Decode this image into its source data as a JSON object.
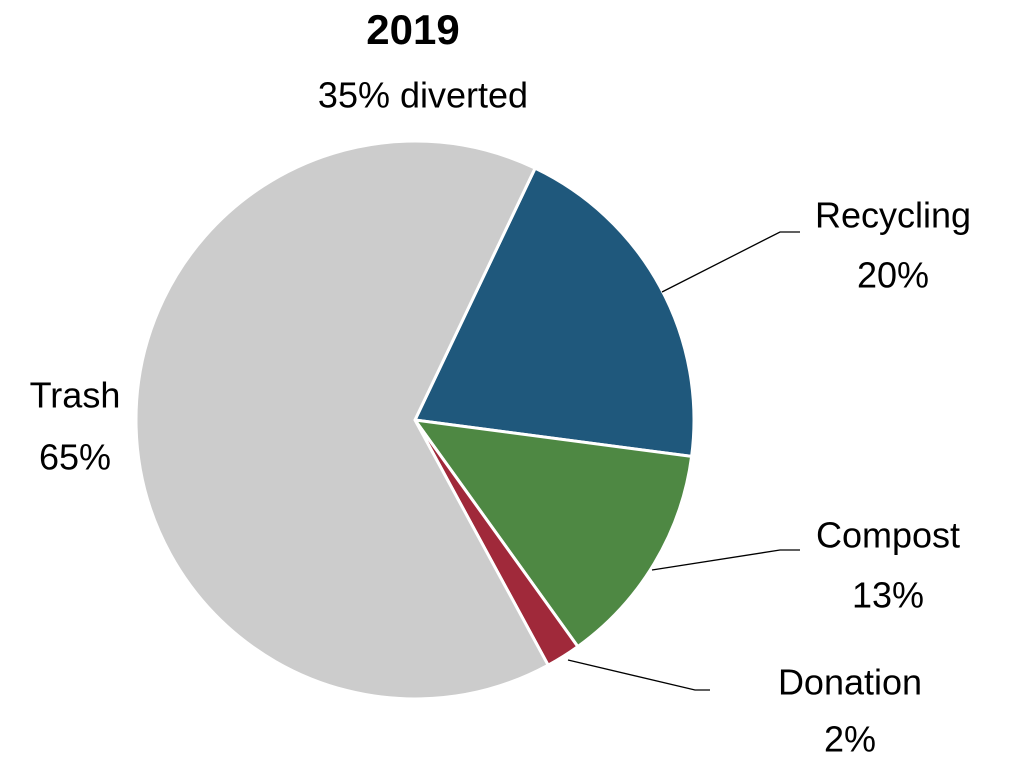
{
  "chart_data": {
    "type": "pie",
    "title": "2019",
    "subtitle": "35% diverted",
    "categories": [
      "Recycling",
      "Compost",
      "Donation",
      "Trash"
    ],
    "values": [
      20,
      13,
      2,
      65
    ],
    "value_labels": [
      "20%",
      "13%",
      "2%",
      "65%"
    ],
    "colors": [
      "#1f587c",
      "#4e8843",
      "#a0293a",
      "#cccccc"
    ]
  }
}
